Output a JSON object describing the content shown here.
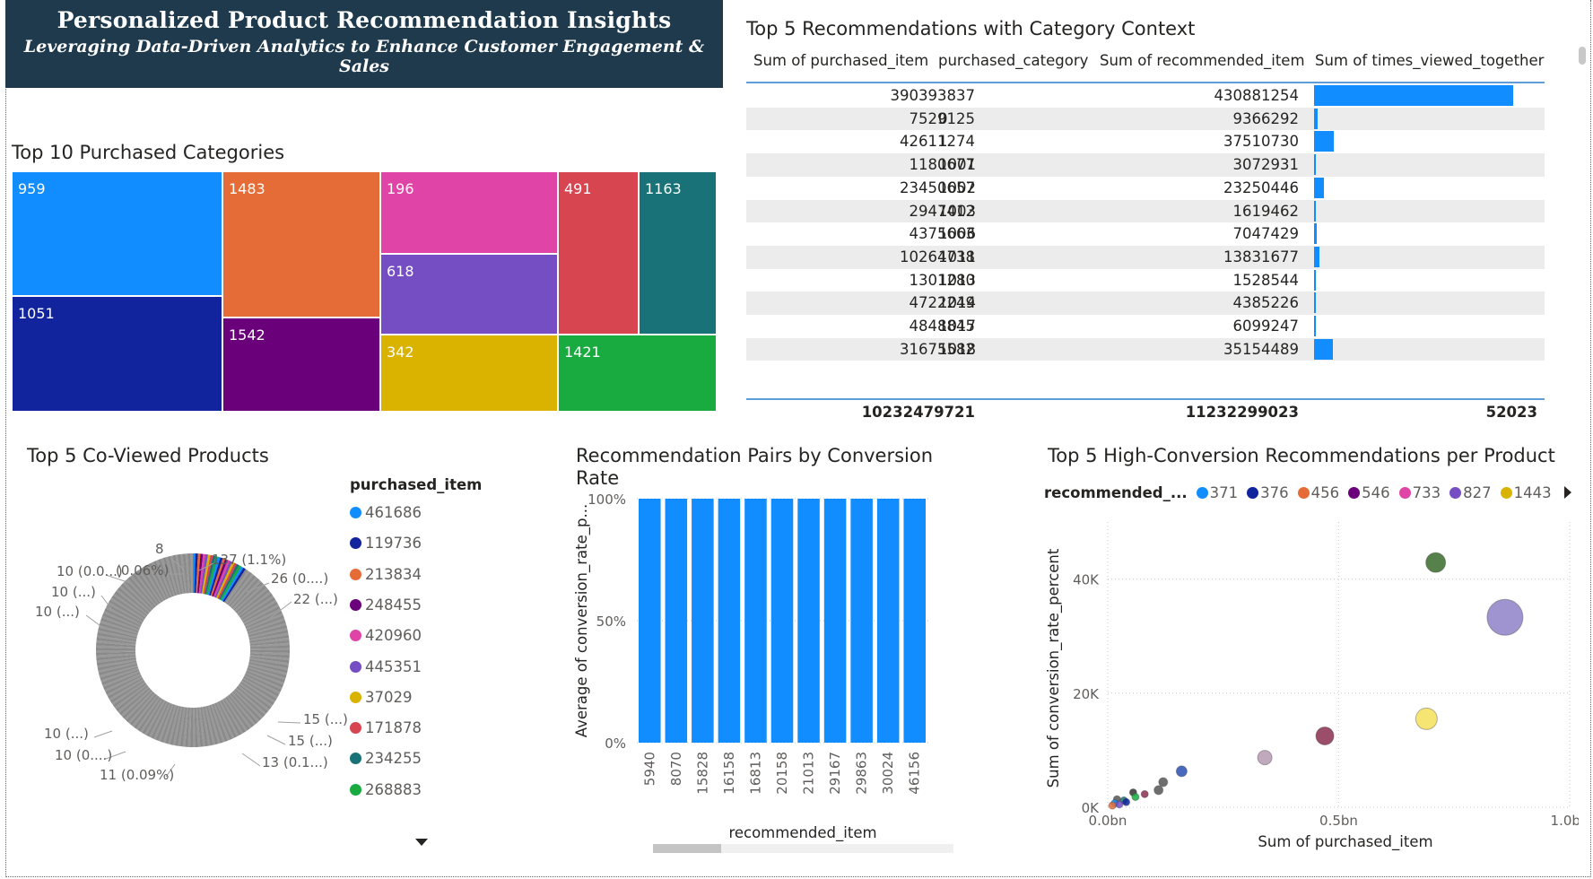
{
  "banner": {
    "title": "Personalized Product Recommendation Insights",
    "subtitle": "Leveraging Data-Driven Analytics to Enhance Customer Engagement & Sales"
  },
  "treemap": {
    "title": "Top 10 Purchased Categories",
    "cells": [
      {
        "label": "959",
        "color": "#118dff"
      },
      {
        "label": "1051",
        "color": "#12239e"
      },
      {
        "label": "1483",
        "color": "#e66c37"
      },
      {
        "label": "1542",
        "color": "#6b007b"
      },
      {
        "label": "196",
        "color": "#e044a7"
      },
      {
        "label": "618",
        "color": "#744ec2"
      },
      {
        "label": "342",
        "color": "#d9b300"
      },
      {
        "label": "491",
        "color": "#d64550"
      },
      {
        "label": "1163",
        "color": "#197278"
      },
      {
        "label": "1421",
        "color": "#1aab40"
      }
    ]
  },
  "table": {
    "title": "Top 5 Recommendations with Category Context",
    "headers": [
      "Sum of purchased_item",
      "purchased_category",
      "Sum of recommended_item",
      "Sum of times_viewed_together"
    ],
    "rows": [
      {
        "purchased": "390393837",
        "category": "",
        "recommended": "430881254",
        "viewed": 1.0
      },
      {
        "purchased": "7529125",
        "category": "0",
        "recommended": "9366292",
        "viewed": 0.02
      },
      {
        "purchased": "42611274",
        "category": "1",
        "recommended": "37510730",
        "viewed": 0.1
      },
      {
        "purchased": "1180677",
        "category": "1001",
        "recommended": "3072931",
        "viewed": 0.003
      },
      {
        "purchased": "23450657",
        "category": "1002",
        "recommended": "23250446",
        "viewed": 0.05
      },
      {
        "purchased": "2947412",
        "category": "1003",
        "recommended": "1619462",
        "viewed": 0.005
      },
      {
        "purchased": "4375663",
        "category": "1006",
        "recommended": "7047429",
        "viewed": 0.013
      },
      {
        "purchased": "10264738",
        "category": "1011",
        "recommended": "13831677",
        "viewed": 0.028
      },
      {
        "purchased": "1301280",
        "category": "1013",
        "recommended": "1528544",
        "viewed": 0.01
      },
      {
        "purchased": "4722249",
        "category": "1014",
        "recommended": "4385226",
        "viewed": 0.008
      },
      {
        "purchased": "4848845",
        "category": "1017",
        "recommended": "6099247",
        "viewed": 0.01
      },
      {
        "purchased": "31675582",
        "category": "1018",
        "recommended": "35154489",
        "viewed": 0.095
      }
    ],
    "totals": {
      "purchased": "10232479721",
      "recommended": "11232299023",
      "viewed": "52023"
    }
  },
  "donut": {
    "title": "Top 5 Co-Viewed Products",
    "labels": [
      "8",
      "137 (1.1%)",
      "(0.06%)",
      "26 (0....)",
      "10 (0.0...)",
      "22 (...)",
      "10 (...)",
      "10 (...)",
      "15 (...)",
      "15 (...)",
      "10 (...)",
      "13 (0.1...)",
      "10 (0....)",
      "11 (0.09%)"
    ],
    "legend_title": "purchased_item",
    "legend": [
      {
        "label": "461686",
        "color": "#118dff"
      },
      {
        "label": "119736",
        "color": "#12239e"
      },
      {
        "label": "213834",
        "color": "#e66c37"
      },
      {
        "label": "248455",
        "color": "#6b007b"
      },
      {
        "label": "420960",
        "color": "#e044a7"
      },
      {
        "label": "445351",
        "color": "#744ec2"
      },
      {
        "label": "37029",
        "color": "#d9b300"
      },
      {
        "label": "171878",
        "color": "#d64550"
      },
      {
        "label": "234255",
        "color": "#197278"
      },
      {
        "label": "268883",
        "color": "#1aab40"
      }
    ]
  },
  "chart_data": [
    {
      "type": "bar",
      "title": "Recommendation Pairs by Conversion Rate",
      "xlabel": "recommended_item",
      "ylabel": "Average of conversion_rate_p...",
      "categories": [
        "5940",
        "8070",
        "15828",
        "16158",
        "16813",
        "20158",
        "21013",
        "29167",
        "29863",
        "30024",
        "46156"
      ],
      "values": [
        100,
        100,
        100,
        100,
        100,
        100,
        100,
        100,
        100,
        100,
        100
      ],
      "ylim": [
        0,
        100
      ],
      "yticks": [
        "0%",
        "50%",
        "100%"
      ],
      "color": "#118dff"
    },
    {
      "type": "scatter",
      "title": "Top 5 High-Conversion Recommendations per Product",
      "xlabel": "Sum of purchased_item",
      "ylabel": "Sum of conversion_rate_percent",
      "xlim": [
        0,
        1.0
      ],
      "ylim": [
        0,
        50000
      ],
      "xticks": [
        "0.0bn",
        "0.5bn",
        "1.0bn"
      ],
      "yticks": [
        "0K",
        "20K",
        "40K"
      ],
      "legend_title": "recommended_...",
      "legend": [
        {
          "label": "371",
          "color": "#118dff"
        },
        {
          "label": "376",
          "color": "#12239e"
        },
        {
          "label": "456",
          "color": "#e66c37"
        },
        {
          "label": "546",
          "color": "#6b007b"
        },
        {
          "label": "733",
          "color": "#e044a7"
        },
        {
          "label": "827",
          "color": "#744ec2"
        },
        {
          "label": "1443",
          "color": "#d9b300"
        }
      ],
      "points": [
        {
          "x": 0.71,
          "y": 42900,
          "size": 11,
          "color": "#3a6b2a"
        },
        {
          "x": 0.86,
          "y": 33300,
          "size": 20,
          "color": "#8e80c8"
        },
        {
          "x": 0.69,
          "y": 15500,
          "size": 12,
          "color": "#f5e05a"
        },
        {
          "x": 0.47,
          "y": 12500,
          "size": 10,
          "color": "#8a2e50"
        },
        {
          "x": 0.34,
          "y": 8700,
          "size": 8,
          "color": "#b59ab0"
        },
        {
          "x": 0.16,
          "y": 6300,
          "size": 6,
          "color": "#2a4fb0"
        },
        {
          "x": 0.12,
          "y": 4400,
          "size": 5,
          "color": "#555555"
        },
        {
          "x": 0.11,
          "y": 3000,
          "size": 5,
          "color": "#555555"
        },
        {
          "x": 0.08,
          "y": 2300,
          "size": 4,
          "color": "#8a2e50"
        },
        {
          "x": 0.055,
          "y": 2600,
          "size": 4,
          "color": "#333333"
        },
        {
          "x": 0.06,
          "y": 1800,
          "size": 4,
          "color": "#1aab40"
        },
        {
          "x": 0.035,
          "y": 1200,
          "size": 4,
          "color": "#197278"
        },
        {
          "x": 0.02,
          "y": 1400,
          "size": 4,
          "color": "#555555"
        },
        {
          "x": 0.015,
          "y": 700,
          "size": 4,
          "color": "#118dff"
        },
        {
          "x": 0.025,
          "y": 500,
          "size": 4,
          "color": "#744ec2"
        },
        {
          "x": 0.04,
          "y": 900,
          "size": 4,
          "color": "#12239e"
        },
        {
          "x": 0.01,
          "y": 300,
          "size": 4,
          "color": "#e66c37"
        }
      ]
    }
  ]
}
